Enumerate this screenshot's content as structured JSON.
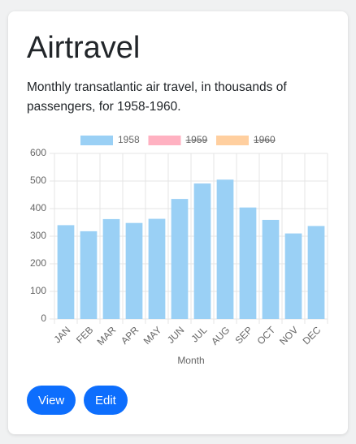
{
  "card": {
    "title": "Airtravel",
    "description": "Monthly transatlantic air travel, in thousands of passengers, for 1958-1960."
  },
  "buttons": [
    "View",
    "Edit"
  ],
  "chart_data": {
    "type": "bar",
    "categories": [
      "JAN",
      "FEB",
      "MAR",
      "APR",
      "MAY",
      "JUN",
      "JUL",
      "AUG",
      "SEP",
      "OCT",
      "NOV",
      "DEC"
    ],
    "series": [
      {
        "name": "1958",
        "color": "#9ad0f5",
        "values": [
          340,
          318,
          362,
          348,
          363,
          435,
          491,
          505,
          404,
          359,
          310,
          337
        ]
      },
      {
        "name": "1959",
        "color": "#ffb1c1",
        "hidden": true
      },
      {
        "name": "1960",
        "color": "#ffcf9f",
        "hidden": true
      }
    ],
    "xlabel": "Month",
    "ylim": [
      0,
      600
    ],
    "yticks": [
      0,
      100,
      200,
      300,
      400,
      500,
      600
    ],
    "grid": true
  }
}
